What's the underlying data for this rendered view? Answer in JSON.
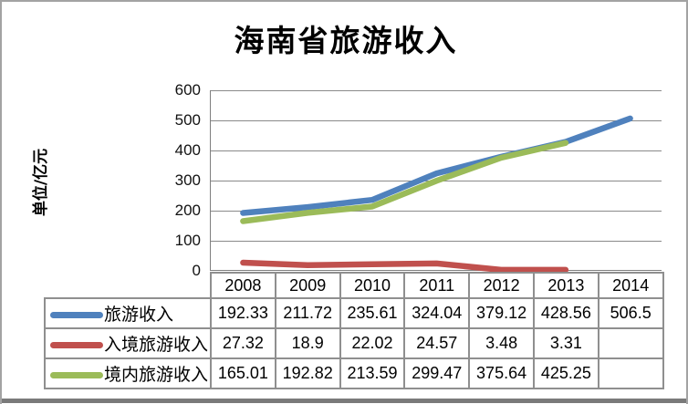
{
  "chart_data": {
    "type": "line",
    "title": "海南省旅游收入",
    "ylabel": "单位/亿元",
    "xlabel": "",
    "categories": [
      "2008",
      "2009",
      "2010",
      "2011",
      "2012",
      "2013",
      "2014"
    ],
    "series": [
      {
        "name": "旅游收入",
        "color": "#4F81BD",
        "values": [
          192.33,
          211.72,
          235.61,
          324.04,
          379.12,
          428.56,
          506.5
        ]
      },
      {
        "name": "入境旅游收入",
        "color": "#C0504D",
        "values": [
          27.32,
          18.9,
          22.02,
          24.57,
          3.48,
          3.31
        ]
      },
      {
        "name": "境内旅游收入",
        "color": "#9BBB59",
        "values": [
          165.01,
          192.82,
          213.59,
          299.47,
          375.64,
          425.25
        ]
      }
    ],
    "ylim": [
      0,
      600
    ],
    "y_ticks": [
      "600",
      "500",
      "400",
      "300",
      "200",
      "100",
      "0"
    ],
    "grid": true,
    "legend_position": "table-left",
    "gridline_color": "#8a8a8a"
  }
}
